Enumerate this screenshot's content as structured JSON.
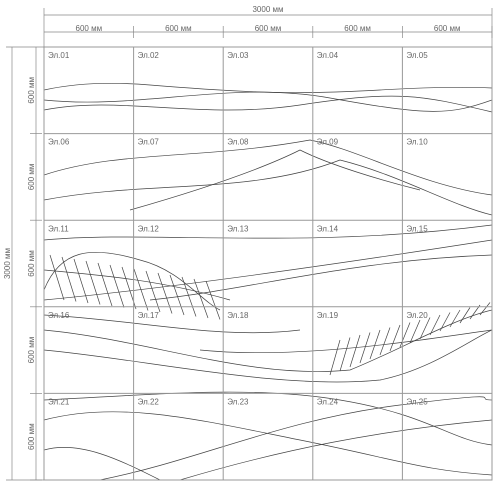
{
  "overall_width": "3000 мм",
  "overall_height": "3000 мм",
  "column_widths": [
    "600 мм",
    "600 мм",
    "600 мм",
    "600 мм",
    "600 мм"
  ],
  "row_heights": [
    "600 мм",
    "600 мм",
    "600 мм",
    "600 мм",
    "600 мм"
  ],
  "panels": [
    "Эл.01",
    "Эл.02",
    "Эл.03",
    "Эл.04",
    "Эл.05",
    "Эл.06",
    "Эл.07",
    "Эл.08",
    "Эл.09",
    "Эл.10",
    "Эл.11",
    "Эл.12",
    "Эл.13",
    "Эл.14",
    "Эл.15",
    "Эл.16",
    "Эл.17",
    "Эл.18",
    "Эл.19",
    "Эл.20",
    "Эл.21",
    "Эл.22",
    "Эл.23",
    "Эл.24",
    "Эл.25"
  ]
}
